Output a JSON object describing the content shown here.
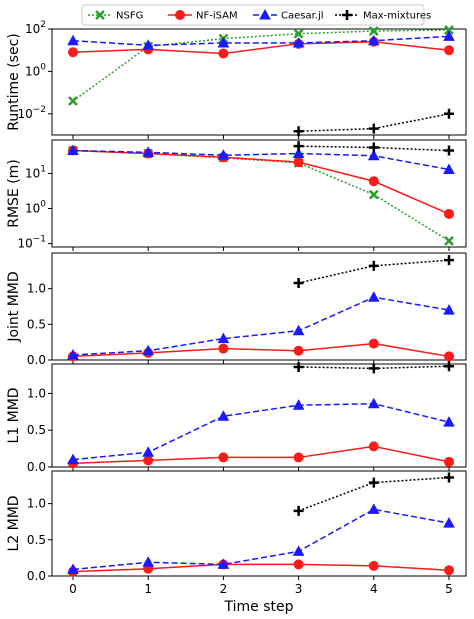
{
  "legend": {
    "entries": [
      {
        "label": "NSFG",
        "color": "#2a9d2a",
        "marker": "x",
        "dash": "dotted"
      },
      {
        "label": "NF-iSAM",
        "color": "#ff1a1a",
        "marker": "circle",
        "dash": "solid"
      },
      {
        "label": "Caesar.jl",
        "color": "#1a1aff",
        "marker": "triangle",
        "dash": "dashed"
      },
      {
        "label": "Max-mixtures",
        "color": "#000000",
        "marker": "plus",
        "dash": "dotted"
      }
    ]
  },
  "x_axis": {
    "label": "Time step",
    "ticks": [
      "0",
      "1",
      "2",
      "3",
      "4",
      "5"
    ]
  },
  "chart_data": [
    {
      "type": "line",
      "ylabel": "Runtime (sec)",
      "yscale": "log",
      "ylim": [
        0.001,
        100
      ],
      "yticks": [
        {
          "v": 0.01,
          "base": "10",
          "exp": "−2"
        },
        {
          "v": 1,
          "base": "10",
          "exp": "0"
        },
        {
          "v": 100,
          "base": "10",
          "exp": "2"
        }
      ],
      "series": [
        {
          "name": "NSFG",
          "x": [
            0,
            1,
            2,
            3,
            4,
            5
          ],
          "values": [
            0.04,
            15,
            35,
            60,
            80,
            90
          ]
        },
        {
          "name": "NF-iSAM",
          "x": [
            0,
            1,
            2,
            3,
            4,
            5
          ],
          "values": [
            8,
            11,
            7,
            20,
            25,
            10
          ]
        },
        {
          "name": "Caesar.jl",
          "x": [
            0,
            1,
            2,
            3,
            4,
            5
          ],
          "values": [
            28,
            17,
            22,
            22,
            28,
            45
          ]
        },
        {
          "name": "Max-mixtures",
          "x": [
            3,
            4,
            5
          ],
          "values": [
            0.0015,
            0.002,
            0.01
          ]
        }
      ]
    },
    {
      "type": "line",
      "ylabel": "RMSE (m)",
      "yscale": "log",
      "ylim": [
        0.08,
        90
      ],
      "yticks": [
        {
          "v": 0.1,
          "base": "10",
          "exp": "−1"
        },
        {
          "v": 1,
          "base": "10",
          "exp": "0"
        },
        {
          "v": 10,
          "base": "10",
          "exp": "1"
        }
      ],
      "series": [
        {
          "name": "NSFG",
          "x": [
            0,
            1,
            2,
            3,
            4,
            5
          ],
          "values": [
            45,
            37,
            28,
            20,
            2.5,
            0.12
          ]
        },
        {
          "name": "NF-iSAM",
          "x": [
            0,
            1,
            2,
            3,
            4,
            5
          ],
          "values": [
            45,
            37,
            29,
            21,
            6,
            0.7
          ]
        },
        {
          "name": "Caesar.jl",
          "x": [
            0,
            1,
            2,
            3,
            4,
            5
          ],
          "values": [
            45,
            40,
            33,
            37,
            32,
            13
          ]
        },
        {
          "name": "Max-mixtures",
          "x": [
            3,
            4,
            5
          ],
          "values": [
            60,
            55,
            45
          ]
        }
      ]
    },
    {
      "type": "line",
      "ylabel": "Joint MMD",
      "yscale": "linear",
      "ylim": [
        0,
        1.5
      ],
      "yticks": [
        {
          "v": 0.0,
          "label": "0.0"
        },
        {
          "v": 0.5,
          "label": "0.5"
        },
        {
          "v": 1.0,
          "label": "1.0"
        }
      ],
      "series": [
        {
          "name": "NF-iSAM",
          "x": [
            0,
            1,
            2,
            3,
            4,
            5
          ],
          "values": [
            0.05,
            0.1,
            0.16,
            0.13,
            0.23,
            0.05
          ]
        },
        {
          "name": "Caesar.jl",
          "x": [
            0,
            1,
            2,
            3,
            4,
            5
          ],
          "values": [
            0.07,
            0.13,
            0.3,
            0.41,
            0.88,
            0.7
          ]
        },
        {
          "name": "Max-mixtures",
          "x": [
            3,
            4,
            5
          ],
          "values": [
            1.08,
            1.32,
            1.4
          ]
        }
      ]
    },
    {
      "type": "line",
      "ylabel": "L1 MMD",
      "yscale": "linear",
      "ylim": [
        0,
        1.4
      ],
      "yticks": [
        {
          "v": 0.0,
          "label": "0.0"
        },
        {
          "v": 0.5,
          "label": "0.5"
        },
        {
          "v": 1.0,
          "label": "1.0"
        }
      ],
      "series": [
        {
          "name": "NF-iSAM",
          "x": [
            0,
            1,
            2,
            3,
            4,
            5
          ],
          "values": [
            0.05,
            0.09,
            0.13,
            0.13,
            0.28,
            0.07
          ]
        },
        {
          "name": "Caesar.jl",
          "x": [
            0,
            1,
            2,
            3,
            4,
            5
          ],
          "values": [
            0.1,
            0.2,
            0.69,
            0.84,
            0.86,
            0.61
          ]
        },
        {
          "name": "Max-mixtures",
          "x": [
            3,
            4,
            5
          ],
          "values": [
            1.36,
            1.34,
            1.37
          ]
        }
      ]
    },
    {
      "type": "line",
      "ylabel": "L2 MMD",
      "yscale": "linear",
      "ylim": [
        0,
        1.45
      ],
      "yticks": [
        {
          "v": 0.0,
          "label": "0.0"
        },
        {
          "v": 0.5,
          "label": "0.5"
        },
        {
          "v": 1.0,
          "label": "1.0"
        }
      ],
      "series": [
        {
          "name": "NF-iSAM",
          "x": [
            0,
            1,
            2,
            3,
            4,
            5
          ],
          "values": [
            0.06,
            0.1,
            0.16,
            0.16,
            0.14,
            0.08
          ]
        },
        {
          "name": "Caesar.jl",
          "x": [
            0,
            1,
            2,
            3,
            4,
            5
          ],
          "values": [
            0.09,
            0.19,
            0.16,
            0.34,
            0.92,
            0.73
          ]
        },
        {
          "name": "Max-mixtures",
          "x": [
            3,
            4,
            5
          ],
          "values": [
            0.9,
            1.29,
            1.36
          ]
        }
      ]
    }
  ]
}
